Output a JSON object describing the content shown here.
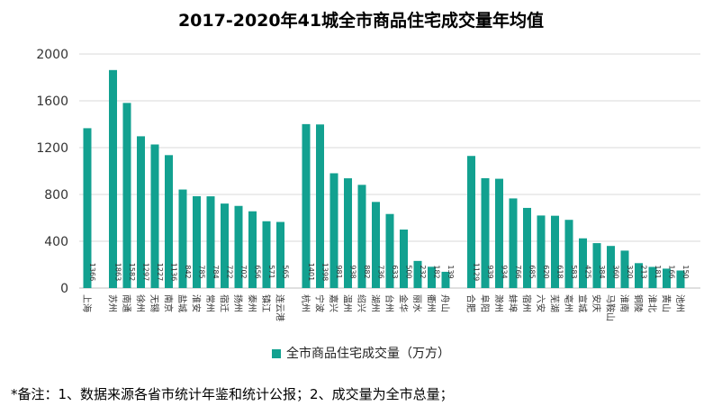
{
  "chart_data": {
    "type": "bar",
    "title": "2017-2020年41城全市商品住宅成交量年均值",
    "ylim": [
      0,
      2000
    ],
    "yticks": [
      0,
      400,
      800,
      1200,
      1600,
      2000
    ],
    "grid": true,
    "legend_position": "bottom",
    "color": "#12a190",
    "groups": [
      {
        "categories": [
          "上海"
        ],
        "values": [
          1366
        ]
      },
      {
        "categories": [
          "苏州",
          "南通",
          "徐州",
          "无锡",
          "南京",
          "盐城",
          "淮安",
          "常州",
          "宿迁",
          "扬州",
          "泰州",
          "镇江",
          "连云港"
        ],
        "values": [
          1863,
          1582,
          1297,
          1227,
          1136,
          842,
          785,
          784,
          722,
          702,
          656,
          571,
          565
        ]
      },
      {
        "categories": [
          "杭州",
          "宁波",
          "嘉兴",
          "温州",
          "绍兴",
          "湖州",
          "台州",
          "金华",
          "丽水",
          "衢州",
          "舟山"
        ],
        "values": [
          1401,
          1398,
          981,
          938,
          882,
          736,
          633,
          500,
          232,
          182,
          139
        ]
      },
      {
        "categories": [
          "合肥",
          "阜阳",
          "滁州",
          "蚌埠",
          "宿州",
          "六安",
          "芜湖",
          "亳州",
          "宣城",
          "安庆",
          "马鞍山",
          "淮南",
          "铜陵",
          "淮北",
          "黄山",
          "池州"
        ],
        "values": [
          1129,
          939,
          934,
          766,
          685,
          620,
          618,
          583,
          425,
          384,
          360,
          320,
          213,
          181,
          166,
          150
        ]
      }
    ],
    "series": [
      {
        "name": "全市商品住宅成交量（万方）"
      }
    ]
  },
  "footnote": "*备注：1、数据来源各省市统计年鉴和统计公报；2、成交量为全市总量；"
}
